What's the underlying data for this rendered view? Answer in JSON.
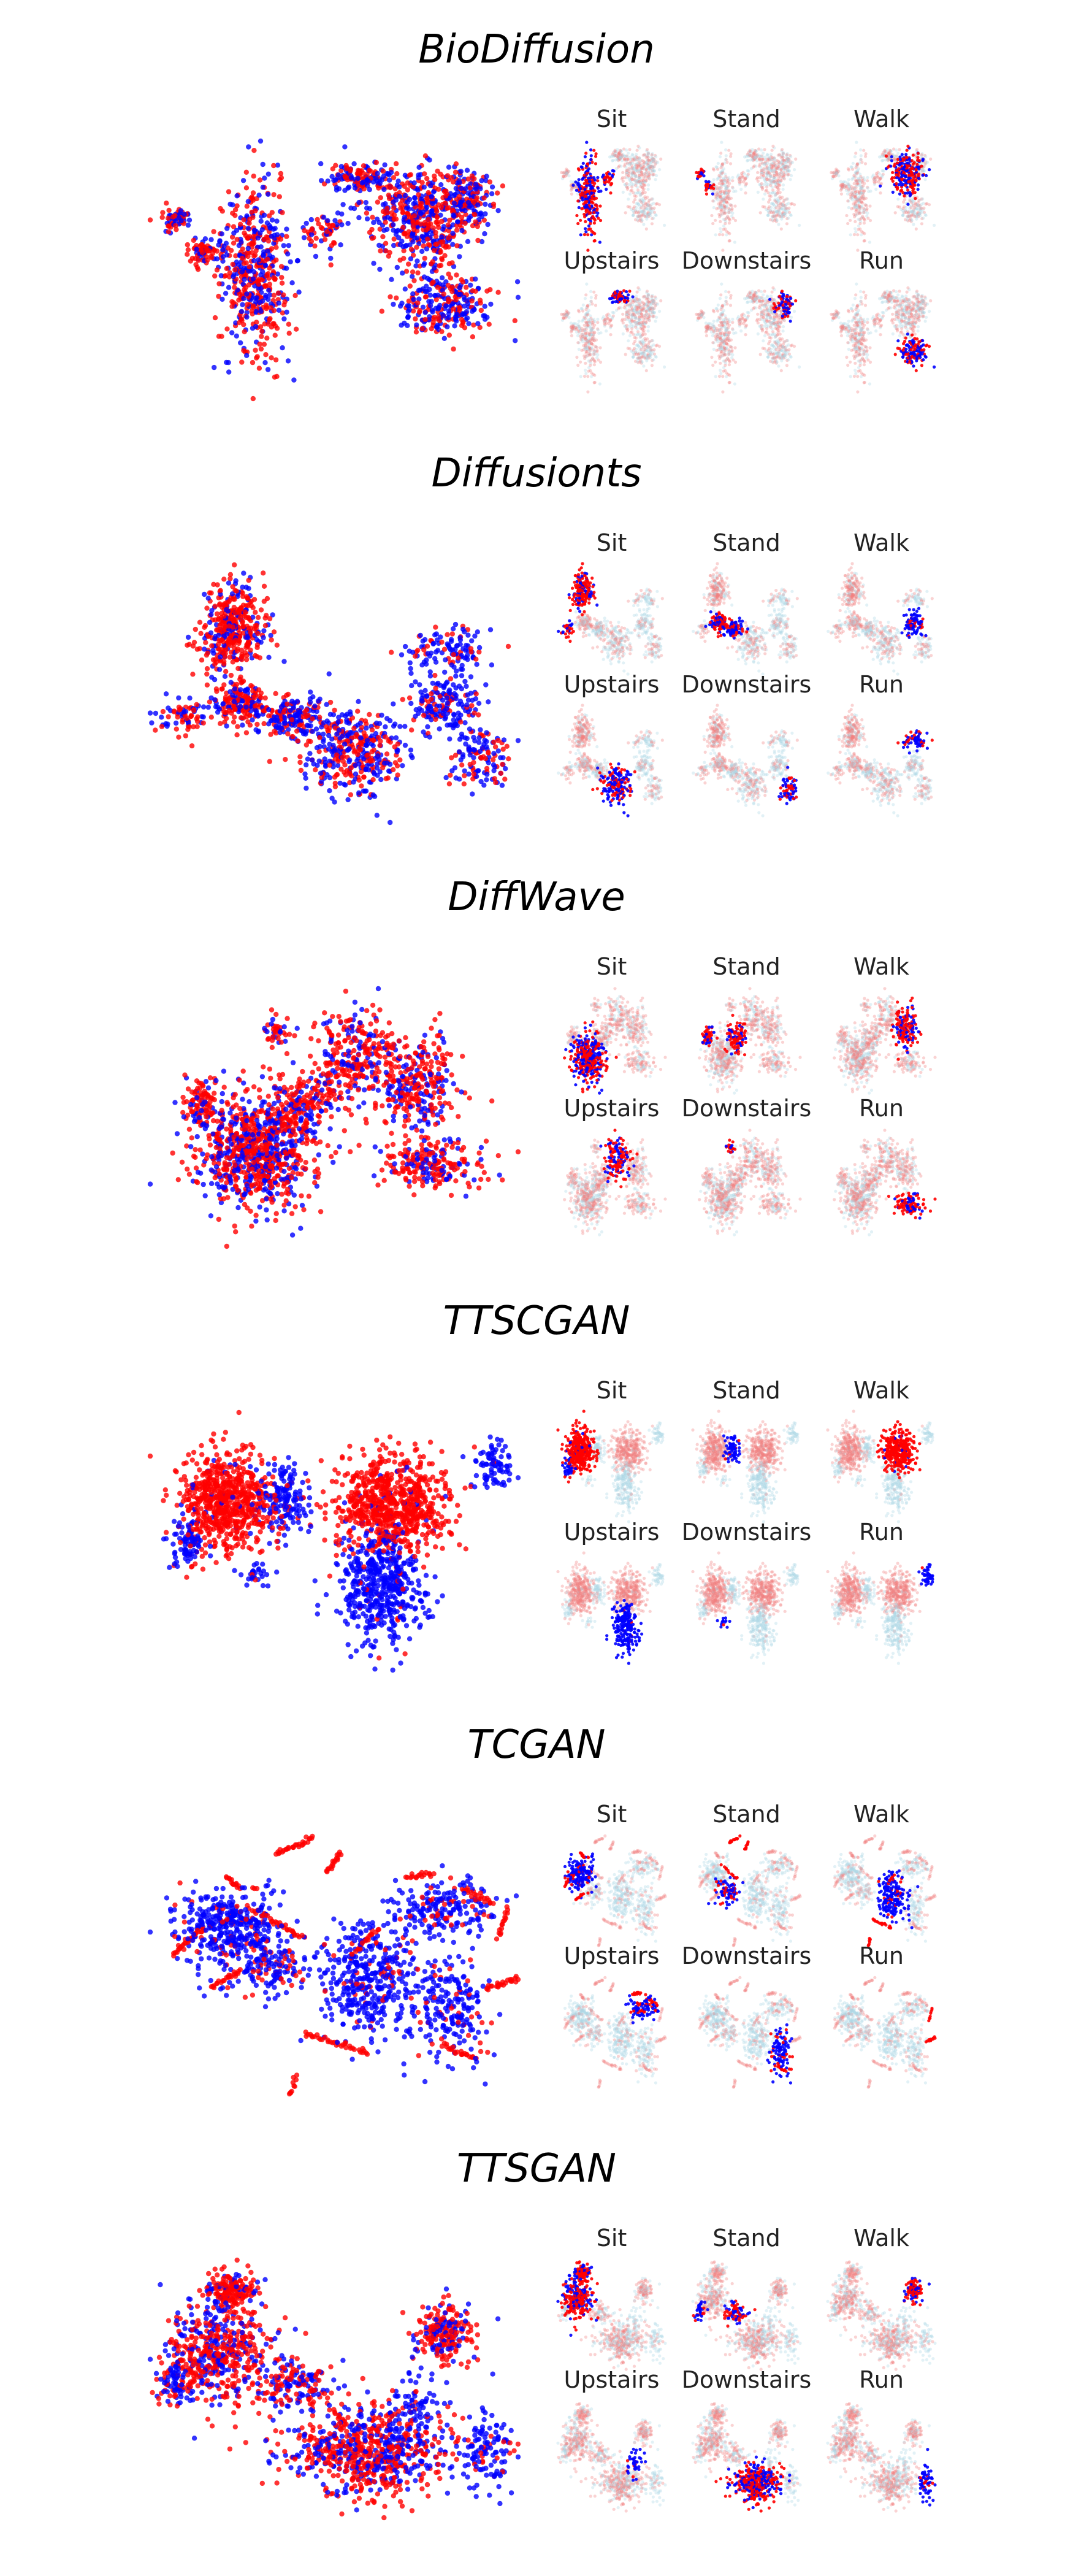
{
  "figure": {
    "background": "#ffffff",
    "colors": {
      "real": "#0000ff",
      "synthetic": "#ff0000",
      "real_faded": "#add8e6",
      "synthetic_faded": "#f08080"
    }
  },
  "chart_data": [
    {
      "type": "scatter",
      "title": "BioDiffusion",
      "style": "t-SNE embedding, blue and red point clouds, axes hidden",
      "subplot_titles": [
        "Sit",
        "Stand",
        "Walk",
        "Upstairs",
        "Downstairs",
        "Run"
      ],
      "xlim": [
        0,
        1
      ],
      "ylim": [
        0,
        1
      ],
      "grid": false,
      "seed": 11,
      "blobs": [
        {
          "cx": 0.48,
          "cy": 0.4,
          "sx": 0.1,
          "sy": 0.22,
          "n": 520,
          "mix": 0.55,
          "cls": 0
        },
        {
          "cx": 0.9,
          "cy": 0.62,
          "sx": 0.05,
          "sy": 0.06,
          "n": 60,
          "mix": 0.6,
          "cls": 0
        },
        {
          "cx": 0.02,
          "cy": 0.68,
          "sx": 0.05,
          "sy": 0.03,
          "n": 60,
          "mix": 0.6,
          "cls": 1
        },
        {
          "cx": 0.18,
          "cy": 0.5,
          "sx": 0.05,
          "sy": 0.04,
          "n": 70,
          "mix": 0.7,
          "cls": 1
        },
        {
          "cx": 1.45,
          "cy": 0.68,
          "sx": 0.16,
          "sy": 0.13,
          "n": 480,
          "mix": 0.5,
          "cls": 2
        },
        {
          "cx": 1.1,
          "cy": 0.9,
          "sx": 0.1,
          "sy": 0.04,
          "n": 140,
          "mix": 0.5,
          "cls": 3
        },
        {
          "cx": 1.7,
          "cy": 0.78,
          "sx": 0.1,
          "sy": 0.08,
          "n": 160,
          "mix": 0.5,
          "cls": 4
        },
        {
          "cx": 1.6,
          "cy": 0.22,
          "sx": 0.14,
          "sy": 0.08,
          "n": 260,
          "mix": 0.5,
          "cls": 5
        }
      ]
    },
    {
      "type": "scatter",
      "title": "Diffusionts",
      "style": "t-SNE embedding, blue and red point clouds, axes hidden",
      "subplot_titles": [
        "Sit",
        "Stand",
        "Walk",
        "Upstairs",
        "Downstairs",
        "Run"
      ],
      "xlim": [
        0,
        1
      ],
      "ylim": [
        0,
        1
      ],
      "grid": false,
      "seed": 23,
      "blobs": [
        {
          "cx": 0.35,
          "cy": 0.82,
          "sx": 0.09,
          "sy": 0.1,
          "n": 420,
          "mix": 0.75,
          "cls": 0
        },
        {
          "cx": 0.4,
          "cy": 0.45,
          "sx": 0.09,
          "sy": 0.05,
          "n": 200,
          "mix": 0.7,
          "cls": 1
        },
        {
          "cx": 0.05,
          "cy": 0.38,
          "sx": 0.07,
          "sy": 0.04,
          "n": 70,
          "mix": 0.6,
          "cls": 0
        },
        {
          "cx": 0.72,
          "cy": 0.38,
          "sx": 0.1,
          "sy": 0.05,
          "n": 160,
          "mix": 0.35,
          "cls": 1
        },
        {
          "cx": 1.05,
          "cy": 0.22,
          "sx": 0.16,
          "sy": 0.1,
          "n": 380,
          "mix": 0.5,
          "cls": 3
        },
        {
          "cx": 1.6,
          "cy": 0.45,
          "sx": 0.1,
          "sy": 0.08,
          "n": 180,
          "mix": 0.3,
          "cls": 2
        },
        {
          "cx": 1.62,
          "cy": 0.72,
          "sx": 0.12,
          "sy": 0.05,
          "n": 110,
          "mix": 0.3,
          "cls": 5
        },
        {
          "cx": 1.8,
          "cy": 0.18,
          "sx": 0.08,
          "sy": 0.08,
          "n": 120,
          "mix": 0.4,
          "cls": 4
        }
      ]
    },
    {
      "type": "scatter",
      "title": "DiffWave",
      "style": "t-SNE embedding, blue and red point clouds, axes hidden",
      "subplot_titles": [
        "Sit",
        "Stand",
        "Walk",
        "Upstairs",
        "Downstairs",
        "Run"
      ],
      "xlim": [
        0,
        1
      ],
      "ylim": [
        0,
        1
      ],
      "grid": false,
      "seed": 37,
      "blobs": [
        {
          "cx": 0.4,
          "cy": 0.28,
          "sx": 0.18,
          "sy": 0.14,
          "n": 800,
          "mix": 0.6,
          "cls": 0
        },
        {
          "cx": 0.05,
          "cy": 0.52,
          "sx": 0.06,
          "sy": 0.06,
          "n": 100,
          "mix": 0.75,
          "cls": 1
        },
        {
          "cx": 0.7,
          "cy": 0.5,
          "sx": 0.12,
          "sy": 0.1,
          "n": 220,
          "mix": 0.7,
          "cls": 1
        },
        {
          "cx": 1.05,
          "cy": 0.75,
          "sx": 0.14,
          "sy": 0.12,
          "n": 280,
          "mix": 0.7,
          "cls": 3
        },
        {
          "cx": 1.45,
          "cy": 0.62,
          "sx": 0.14,
          "sy": 0.12,
          "n": 300,
          "mix": 0.7,
          "cls": 2
        },
        {
          "cx": 1.55,
          "cy": 0.22,
          "sx": 0.18,
          "sy": 0.06,
          "n": 220,
          "mix": 0.7,
          "cls": 5
        },
        {
          "cx": 0.55,
          "cy": 0.88,
          "sx": 0.04,
          "sy": 0.04,
          "n": 40,
          "mix": 0.7,
          "cls": 4
        }
      ]
    },
    {
      "type": "scatter",
      "title": "TTSCGAN",
      "style": "t-SNE embedding, blue and red point clouds, axes hidden",
      "subplot_titles": [
        "Sit",
        "Stand",
        "Walk",
        "Upstairs",
        "Downstairs",
        "Run"
      ],
      "xlim": [
        0,
        1
      ],
      "ylim": [
        0,
        1
      ],
      "grid": false,
      "seed": 41,
      "blobs": [
        {
          "cx": 0.28,
          "cy": 0.62,
          "sx": 0.13,
          "sy": 0.1,
          "n": 700,
          "mix": 0.96,
          "cls": 0
        },
        {
          "cx": 0.6,
          "cy": 0.62,
          "sx": 0.07,
          "sy": 0.08,
          "n": 150,
          "mix": 0.08,
          "cls": 1
        },
        {
          "cx": 0.05,
          "cy": 0.45,
          "sx": 0.05,
          "sy": 0.06,
          "n": 90,
          "mix": 0.05,
          "cls": 0
        },
        {
          "cx": 1.2,
          "cy": 0.6,
          "sx": 0.16,
          "sy": 0.1,
          "n": 750,
          "mix": 0.96,
          "cls": 2
        },
        {
          "cx": 1.15,
          "cy": 0.25,
          "sx": 0.12,
          "sy": 0.12,
          "n": 500,
          "mix": 0.03,
          "cls": 3
        },
        {
          "cx": 1.78,
          "cy": 0.78,
          "sx": 0.06,
          "sy": 0.05,
          "n": 80,
          "mix": 0.05,
          "cls": 5
        },
        {
          "cx": 0.45,
          "cy": 0.3,
          "sx": 0.05,
          "sy": 0.03,
          "n": 30,
          "mix": 0.05,
          "cls": 4
        }
      ]
    },
    {
      "type": "scatter",
      "title": "TCGAN",
      "style": "t-SNE embedding, blue and red point clouds, axes hidden",
      "subplot_titles": [
        "Sit",
        "Stand",
        "Walk",
        "Upstairs",
        "Downstairs",
        "Run"
      ],
      "xlim": [
        0,
        1
      ],
      "ylim": [
        0,
        1
      ],
      "grid": false,
      "seed": 53,
      "blobs": [
        {
          "cx": 0.28,
          "cy": 0.62,
          "sx": 0.14,
          "sy": 0.07,
          "n": 380,
          "mix": 0.1,
          "cls": 0
        },
        {
          "cx": 0.5,
          "cy": 0.48,
          "sx": 0.12,
          "sy": 0.06,
          "n": 160,
          "mix": 0.25,
          "cls": 1
        },
        {
          "cx": 1.05,
          "cy": 0.42,
          "sx": 0.14,
          "sy": 0.12,
          "n": 420,
          "mix": 0.1,
          "cls": 2
        },
        {
          "cx": 1.45,
          "cy": 0.7,
          "sx": 0.14,
          "sy": 0.06,
          "n": 200,
          "mix": 0.15,
          "cls": 3
        },
        {
          "cx": 1.5,
          "cy": 0.3,
          "sx": 0.1,
          "sy": 0.1,
          "n": 200,
          "mix": 0.15,
          "cls": 4
        }
      ],
      "streaks": [
        {
          "x1": 0.0,
          "y1": 0.52,
          "x2": 0.15,
          "y2": 0.62,
          "n": 28,
          "cls": 0
        },
        {
          "x1": 0.55,
          "y1": 0.92,
          "x2": 0.75,
          "y2": 0.98,
          "n": 28,
          "cls": 1
        },
        {
          "x1": 0.82,
          "y1": 0.85,
          "x2": 0.9,
          "y2": 0.92,
          "n": 18,
          "cls": 1
        },
        {
          "x1": 0.4,
          "y1": 0.7,
          "x2": 0.7,
          "y2": 0.58,
          "n": 34,
          "cls": 1
        },
        {
          "x1": 0.2,
          "y1": 0.38,
          "x2": 0.35,
          "y2": 0.45,
          "n": 22,
          "cls": 0
        },
        {
          "x1": 0.7,
          "y1": 0.2,
          "x2": 1.05,
          "y2": 0.12,
          "n": 36,
          "cls": 2
        },
        {
          "x1": 1.45,
          "y1": 0.15,
          "x2": 1.62,
          "y2": 0.1,
          "n": 24,
          "cls": 4
        },
        {
          "x1": 1.55,
          "y1": 0.78,
          "x2": 1.72,
          "y2": 0.72,
          "n": 22,
          "cls": 3
        },
        {
          "x1": 1.68,
          "y1": 0.38,
          "x2": 1.86,
          "y2": 0.42,
          "n": 24,
          "cls": 5
        },
        {
          "x1": 0.95,
          "y1": 0.5,
          "x2": 1.1,
          "y2": 0.62,
          "n": 20,
          "cls": 2
        },
        {
          "x1": 1.75,
          "y1": 0.58,
          "x2": 1.8,
          "y2": 0.7,
          "n": 16,
          "cls": 5
        },
        {
          "x1": 0.62,
          "y1": -0.05,
          "x2": 0.66,
          "y2": 0.03,
          "n": 10,
          "cls": 2
        },
        {
          "x1": 1.25,
          "y1": 0.82,
          "x2": 1.4,
          "y2": 0.84,
          "n": 16,
          "cls": 3
        },
        {
          "x1": 0.28,
          "y1": 0.82,
          "x2": 0.35,
          "y2": 0.78,
          "n": 14,
          "cls": 0
        }
      ]
    },
    {
      "type": "scatter",
      "title": "TTSGAN",
      "style": "t-SNE embedding, blue and red point clouds, axes hidden",
      "subplot_titles": [
        "Sit",
        "Stand",
        "Walk",
        "Upstairs",
        "Downstairs",
        "Run"
      ],
      "xlim": [
        0,
        1
      ],
      "ylim": [
        0,
        1
      ],
      "grid": false,
      "seed": 67,
      "blobs": [
        {
          "cx": 0.38,
          "cy": 0.88,
          "sx": 0.06,
          "sy": 0.04,
          "n": 180,
          "mix": 0.8,
          "cls": 0
        },
        {
          "cx": 0.32,
          "cy": 0.62,
          "sx": 0.14,
          "sy": 0.1,
          "n": 520,
          "mix": 0.65,
          "cls": 0
        },
        {
          "cx": 0.08,
          "cy": 0.5,
          "sx": 0.05,
          "sy": 0.05,
          "n": 90,
          "mix": 0.3,
          "cls": 1
        },
        {
          "cx": 1.5,
          "cy": 0.7,
          "sx": 0.08,
          "sy": 0.06,
          "n": 220,
          "mix": 0.75,
          "cls": 2
        },
        {
          "cx": 1.35,
          "cy": 0.38,
          "sx": 0.07,
          "sy": 0.07,
          "n": 80,
          "mix": 0.2,
          "cls": 3
        },
        {
          "cx": 1.1,
          "cy": 0.2,
          "sx": 0.22,
          "sy": 0.09,
          "n": 750,
          "mix": 0.6,
          "cls": 4
        },
        {
          "cx": 1.72,
          "cy": 0.2,
          "sx": 0.08,
          "sy": 0.08,
          "n": 120,
          "mix": 0.25,
          "cls": 5
        },
        {
          "cx": 0.72,
          "cy": 0.48,
          "sx": 0.1,
          "sy": 0.05,
          "n": 160,
          "mix": 0.5,
          "cls": 1
        }
      ]
    }
  ]
}
